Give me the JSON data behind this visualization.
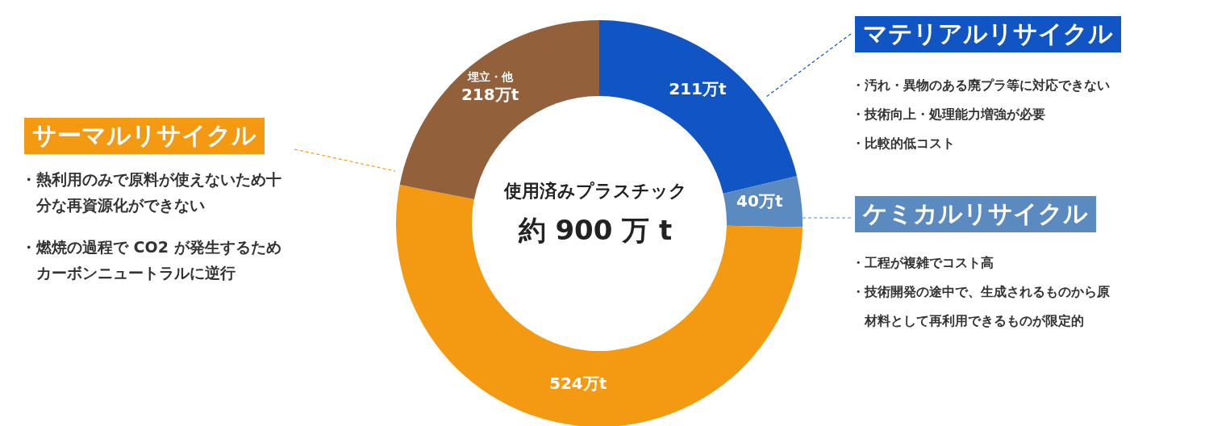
{
  "chart_data": {
    "type": "donut",
    "categories": [
      "マテリアルリサイクル",
      "ケミカルリサイクル",
      "サーマルリサイクル",
      "埋立・他"
    ],
    "values": [
      211,
      40,
      524,
      218
    ],
    "colors": [
      "#1155c4",
      "#5b8ac0",
      "#f39a12",
      "#92603a"
    ],
    "value_labels": [
      "211万t",
      "40万t",
      "524万t",
      "218万t"
    ],
    "annotations": [
      "・汚れ・異物のある廃プラ等に対応できない",
      "・技術向上・処理能力増強が必要",
      "・比較的低コスト",
      "・工程が複雑でコスト高",
      "・技術開発の途中で、生成されるものから原材料として再利用できるものが限定的",
      "・熱利用のみで原料が使えないため十分な再資源化ができない",
      "・燃焼の過程で CO2 が発生するためカーボンニュートラルに逆行",
      "使用済みプラスチック",
      "約 900 万 t"
    ]
  }
}
